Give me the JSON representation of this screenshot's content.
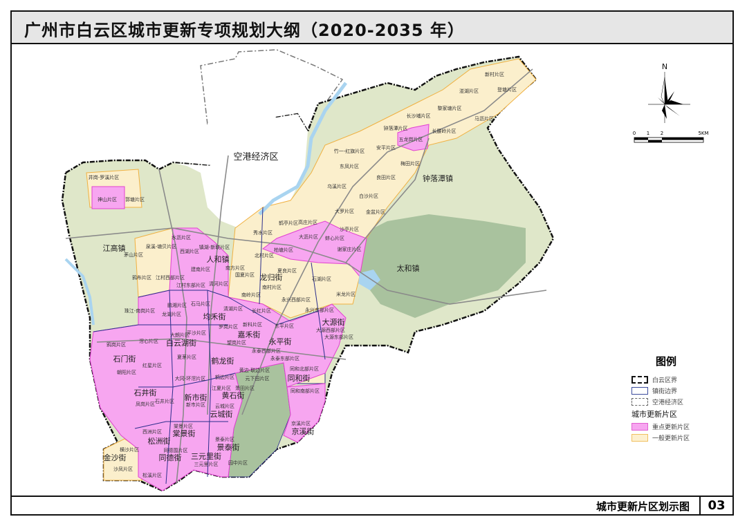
{
  "title": "广州市白云区城市更新专项规划大纲（2020-2035 年）",
  "footer": {
    "label": "城市更新片区划示图",
    "page": "03"
  },
  "compass": {
    "north": "N"
  },
  "scale_bar": {
    "ticks": [
      "0",
      "1",
      "2",
      "5KM"
    ]
  },
  "legend": {
    "title": "图例",
    "items": [
      {
        "label": "白云区界",
        "symbol": "black-dash-dot-border"
      },
      {
        "label": "镇街边界",
        "symbol": "blue-solid-border"
      },
      {
        "label": "空港经济区",
        "symbol": "grey-dash-dot-border"
      }
    ],
    "subtitle": "城市更新片区",
    "fills": [
      {
        "label": "重点更新片区",
        "color": "#f7a6f0"
      },
      {
        "label": "一般更新片区",
        "color": "#fdf0cf"
      }
    ]
  },
  "colors": {
    "base": "#dfe7c9",
    "key_zone": "#f7a6f0",
    "general_zone": "#fbefcc",
    "forest": "#a9c29e",
    "water": "#a9d4f0",
    "boundary": "#111111",
    "street_border": "#2b2e8c"
  },
  "towns": [
    "空港经济区",
    "江高镇",
    "钟落潭镇",
    "太和镇",
    "人和镇",
    "龙归街",
    "均禾街",
    "嘉禾街",
    "白云湖街",
    "石门街",
    "鹤龙街",
    "永平街",
    "大源街",
    "同和街",
    "黄石街",
    "石井街",
    "新市街",
    "云城街",
    "棠景街",
    "松洲街",
    "景泰街",
    "同德街",
    "三元里街",
    "京溪街",
    "金沙街"
  ],
  "zones": [
    "井岗-罗溪片区",
    "神山片区",
    "郭塘片区",
    "茅山片区",
    "泉溪-塘贝片区",
    "水沥片区",
    "西湖片区",
    "镇湖-新联片区",
    "建南片区",
    "鸦布片区",
    "江村西部片区",
    "江村东部片区",
    "清河片区",
    "南方片区",
    "国夏片区",
    "北村片区",
    "南村片区",
    "夏良片区",
    "鹤亭片区",
    "秀水片区",
    "柏塘片区",
    "高庄片区",
    "大沥片区",
    "蚌心片区",
    "谢家庄片区",
    "沙亭片区",
    "大罗片区",
    "金盆片区",
    "石湖片区",
    "米龙片区",
    "南岭片区",
    "永兴西部片区",
    "永兴东部片区",
    "长红片区",
    "新科片区",
    "东平片区",
    "大源西部片区",
    "大源东部片区",
    "永泰西部片区",
    "永泰东部片区",
    "同和北部片区",
    "同和南部片区",
    "京溪片区",
    "罗岗片区",
    "望岗片区",
    "鹤边片区",
    "黄边-联边片区",
    "元下田片区",
    "江夏片区",
    "萧田片区",
    "云城片区",
    "清湖片区",
    "石马片区",
    "鹏湘片区",
    "龙湖片区",
    "珠江-南岗片区",
    "大朗片区",
    "平沙片区",
    "滘心片区",
    "鸦岗片区",
    "红星片区",
    "夏茅片区",
    "朝阳片区",
    "大冈-环滘片区",
    "凤岗片区",
    "石井片区",
    "新市片区",
    "棠景片区",
    "西洲片区",
    "景泰片区",
    "横沙片区",
    "沙凤片区",
    "松溪片区",
    "同德围片区",
    "三元里片区",
    "园中片区",
    "新村片区",
    "湴湖片区",
    "登塘片区",
    "黎家塘片区",
    "马沥片区",
    "长沙埔片区",
    "钟落潭片区",
    "长腰岭片区",
    "五龙岗片区",
    "安平片区",
    "竹一-红旗片区",
    "东凤片区",
    "良田片区",
    "梅田片区",
    "乌溪片区",
    "白沙片区"
  ]
}
